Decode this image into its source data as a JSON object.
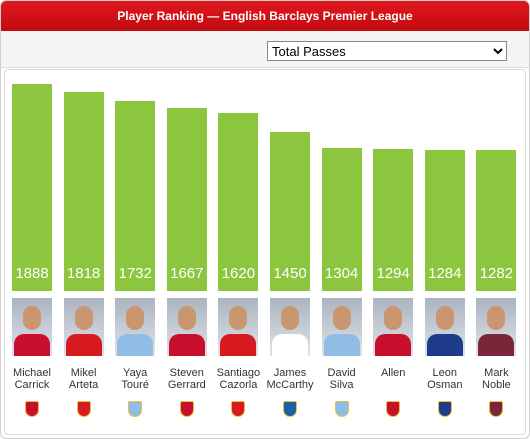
{
  "chart_data": {
    "type": "bar",
    "title": "Player Ranking — English Barclays Premier League",
    "selector": "Total Passes",
    "categories": [
      "Michael Carrick",
      "Mikel Arteta",
      "Yaya Touré",
      "Steven Gerrard",
      "Santiago Cazorla",
      "James McCarthy",
      "David Silva",
      "Allen",
      "Leon Osman",
      "Mark Noble"
    ],
    "values": [
      1888,
      1818,
      1732,
      1667,
      1620,
      1450,
      1304,
      1294,
      1284,
      1282
    ],
    "color": "#8cc63f"
  }
}
